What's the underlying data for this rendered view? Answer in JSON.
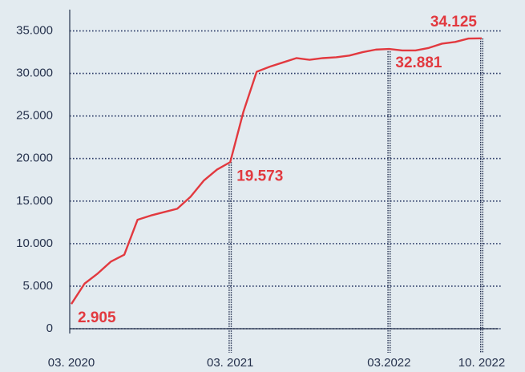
{
  "chart_data": {
    "type": "line",
    "x": [
      "03.2020",
      "04.2020",
      "05.2020",
      "06.2020",
      "07.2020",
      "08.2020",
      "09.2020",
      "10.2020",
      "11.2020",
      "12.2020",
      "01.2021",
      "02.2021",
      "03.2021",
      "04.2021",
      "05.2021",
      "06.2021",
      "07.2021",
      "08.2021",
      "09.2021",
      "10.2021",
      "11.2021",
      "12.2021",
      "01.2022",
      "02.2022",
      "03.2022",
      "04.2022",
      "05.2022",
      "06.2022",
      "07.2022",
      "08.2022",
      "09.2022",
      "10.2022"
    ],
    "series": [
      {
        "color": "#e2393f",
        "values": [
          2905,
          5300,
          6500,
          7900,
          8700,
          12800,
          13300,
          13700,
          14100,
          15500,
          17400,
          18700,
          19573,
          25500,
          30200,
          30800,
          31300,
          31800,
          31600,
          31800,
          31900,
          32100,
          32500,
          32800,
          32881,
          32700,
          32700,
          33000,
          33500,
          33700,
          34100,
          34125
        ],
        "value_labels": [
          "2.905",
          null,
          null,
          null,
          null,
          null,
          null,
          null,
          null,
          null,
          null,
          null,
          "19.573",
          null,
          null,
          null,
          null,
          null,
          null,
          null,
          null,
          null,
          null,
          null,
          "32.881",
          null,
          null,
          null,
          null,
          null,
          null,
          "34.125"
        ]
      }
    ],
    "ylim": [
      0,
      37500
    ],
    "yticks": [
      0,
      {
        "value": 5000,
        "label": "5.000"
      },
      {
        "value": 10000,
        "label": "10.000"
      },
      {
        "value": 15000,
        "label": "15.000"
      },
      {
        "value": 20000,
        "label": "20.000"
      },
      {
        "value": 25000,
        "label": "25.000"
      },
      {
        "value": 30000,
        "label": "30.000"
      },
      {
        "value": 35000,
        "label": "35.000"
      }
    ],
    "xticks": [
      {
        "value": "03.2020",
        "label": "03. 2020"
      },
      {
        "value": "03.2021",
        "label": "03. 2021"
      },
      {
        "value": "03.2022",
        "label": "03.2022"
      },
      {
        "value": "10.2022",
        "label": "10. 2022"
      }
    ],
    "grid": true
  }
}
